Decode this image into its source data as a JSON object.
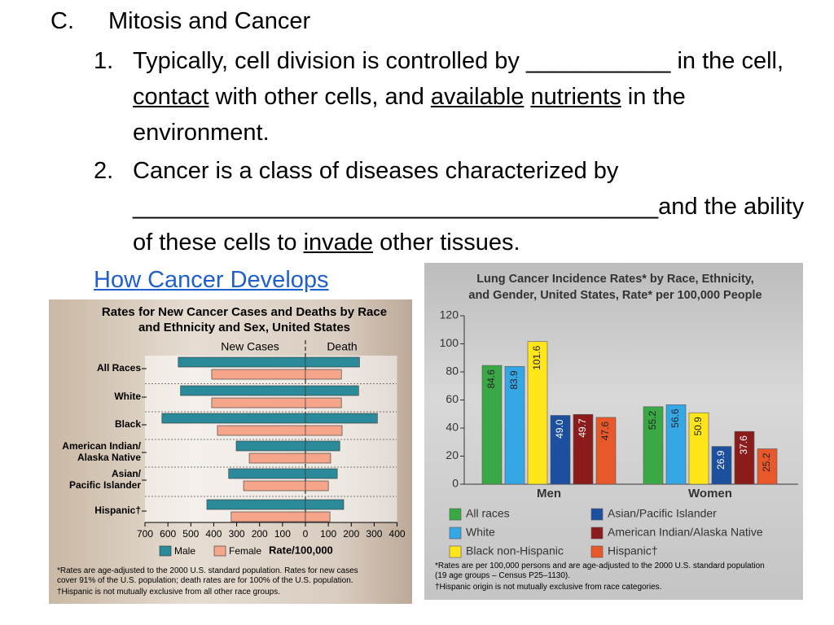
{
  "heading": {
    "letter": "C.",
    "text": "Mitosis and Cancer"
  },
  "items": [
    {
      "number": "1.",
      "parts": [
        {
          "text": "Typically, cell division is controlled by ___________ in the cell, "
        },
        {
          "text": "contact",
          "underline": true
        },
        {
          "text": " with other cells, and "
        },
        {
          "text": "available",
          "underline": true
        },
        {
          "text": " "
        },
        {
          "text": "nutrients",
          "underline": true
        },
        {
          "text": " in the environment."
        }
      ]
    },
    {
      "number": "2.",
      "parts": [
        {
          "text": "Cancer is a class of diseases characterized by ________________________________________and the ability of these cells to "
        },
        {
          "text": "invade",
          "underline": true
        },
        {
          "text": " other tissues."
        }
      ]
    }
  ],
  "link": "How Cancer Develops",
  "chart_data": [
    {
      "type": "butterfly",
      "title": "Rates for New Cancer Cases and Deaths by Race\nand Ethnicity and Sex, United States",
      "panels": [
        "New Cases",
        "Death"
      ],
      "categories": [
        "All Races",
        "White",
        "Black",
        "American Indian/\nAlaska Native",
        "Asian/\nPacific Islander",
        "Hispanic†"
      ],
      "series": [
        {
          "name": "Male",
          "color": "#2a8a9a",
          "new_cases": [
            555,
            545,
            626,
            302,
            335,
            430
          ],
          "deaths": [
            236,
            232,
            314,
            150,
            139,
            167
          ]
        },
        {
          "name": "Female",
          "color": "#f4a58a",
          "new_cases": [
            409,
            409,
            384,
            245,
            270,
            324
          ],
          "deaths": [
            157,
            157,
            160,
            110,
            100,
            107
          ]
        }
      ],
      "new_cases_xlim": [
        0,
        700
      ],
      "new_cases_xticks": [
        700,
        600,
        500,
        400,
        300,
        200,
        100,
        0
      ],
      "deaths_xlim": [
        0,
        400
      ],
      "deaths_xticks": [
        100,
        200,
        300,
        400
      ],
      "xlabel": "Rate/100,000",
      "notes": [
        "*Rates are age-adjusted to the 2000 U.S. standard population. Rates for new cases\ncover 91% of the U.S. population; death rates are for 100% of the U.S. population.",
        "†Hispanic is not mutually exclusive from all other race groups."
      ]
    },
    {
      "type": "bar",
      "title": "Lung Cancer Incidence Rates* by Race, Ethnicity,\nand Gender, United States, Rate* per 100,000 People",
      "categories": [
        "Men",
        "Women"
      ],
      "series": [
        {
          "name": "All races",
          "color": "#3aa845",
          "values": [
            84.6,
            55.2
          ]
        },
        {
          "name": "White",
          "color": "#35a7e4",
          "values": [
            83.9,
            56.6
          ]
        },
        {
          "name": "Black non-Hispanic",
          "color": "#ffe61a",
          "values": [
            101.6,
            50.9
          ]
        },
        {
          "name": "Asian/Pacific Islander",
          "color": "#1d4f9f",
          "values": [
            49.0,
            26.9
          ],
          "value_labels": [
            "49.0",
            "26.9"
          ]
        },
        {
          "name": "American Indian/Alaska Native",
          "color": "#8c1c1c",
          "values": [
            49.7,
            37.6
          ]
        },
        {
          "name": "Hispanic†",
          "color": "#e8582a",
          "values": [
            47.6,
            25.2
          ]
        }
      ],
      "ylim": [
        0,
        120
      ],
      "yticks": [
        0,
        20,
        40,
        60,
        80,
        100,
        120
      ],
      "notes": [
        "*Rates are per 100,000 persons and are age-adjusted to the 2000 U.S. standard population\n  (19 age groups – Census P25–1130).",
        "†Hispanic origin is not mutually exclusive from race categories."
      ]
    }
  ]
}
